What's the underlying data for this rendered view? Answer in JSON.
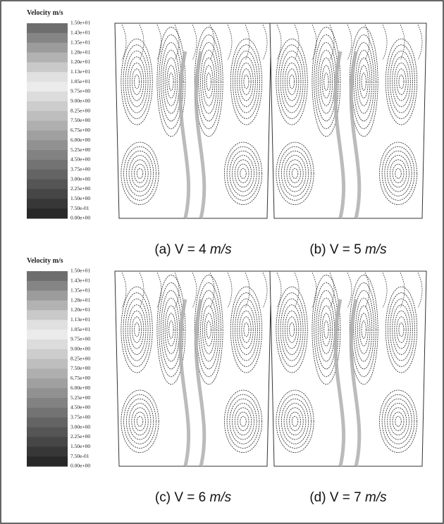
{
  "figure": {
    "panels": [
      {
        "legend": {
          "title": "Velocity m/s",
          "labels": [
            "1.50e+01",
            "1.43e+01",
            "1.35e+01",
            "1.28e+01",
            "1.20e+01",
            "1.13e+01",
            "1.05e+01",
            "9.75e+00",
            "9.00e+00",
            "8.25e+00",
            "7.50e+00",
            "6.75e+00",
            "6.00e+00",
            "5.25e+00",
            "4.50e+00",
            "3.75e+00",
            "3.00e+00",
            "2.25e+00",
            "1.50e+00",
            "7.50e-01",
            "0.00e+00"
          ]
        },
        "captions": [
          {
            "text": "(a) V = 4",
            "unit": "m/s"
          },
          {
            "text": "(b) V = 5",
            "unit": "m/s"
          }
        ]
      },
      {
        "legend": {
          "title": "Velocity m/s",
          "labels": [
            "1.50e+01",
            "1.43e+01",
            "1.35e+01",
            "1.28e+01",
            "1.20e+01",
            "1.13e+01",
            "1.05e+01",
            "9.75e+00",
            "9.00e+00",
            "8.25e+00",
            "7.50e+00",
            "6.75e+00",
            "6.00e+00",
            "5.25e+00",
            "4.50e+00",
            "3.75e+00",
            "3.00e+00",
            "2.25e+00",
            "1.50e+00",
            "7.50e-01",
            "0.00e+00"
          ]
        },
        "captions": [
          {
            "text": "(c) V = 6",
            "unit": "m/s"
          },
          {
            "text": "(d) V = 7",
            "unit": "m/s"
          }
        ]
      }
    ]
  }
}
